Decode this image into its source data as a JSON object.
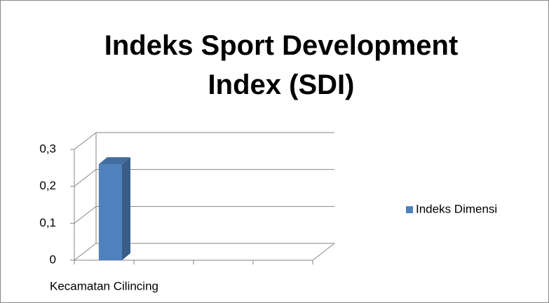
{
  "chart_data": {
    "type": "bar",
    "title": "Indeks Sport Development Index (SDI)",
    "categories": [
      "Kecamatan Cilincing",
      null,
      null,
      null
    ],
    "series": [
      {
        "name": "Indeks Dimensi",
        "color": "#4f81bd",
        "values": [
          0.26,
          null,
          null,
          null
        ]
      }
    ],
    "ylim": [
      0,
      0.3
    ],
    "yticks": [
      0,
      {
        "value": 0.1,
        "label": "0,1"
      },
      {
        "value": 0.2,
        "label": "0,2"
      },
      {
        "value": 0.3,
        "label": "0,3"
      }
    ],
    "grid": true,
    "legend": "right"
  }
}
